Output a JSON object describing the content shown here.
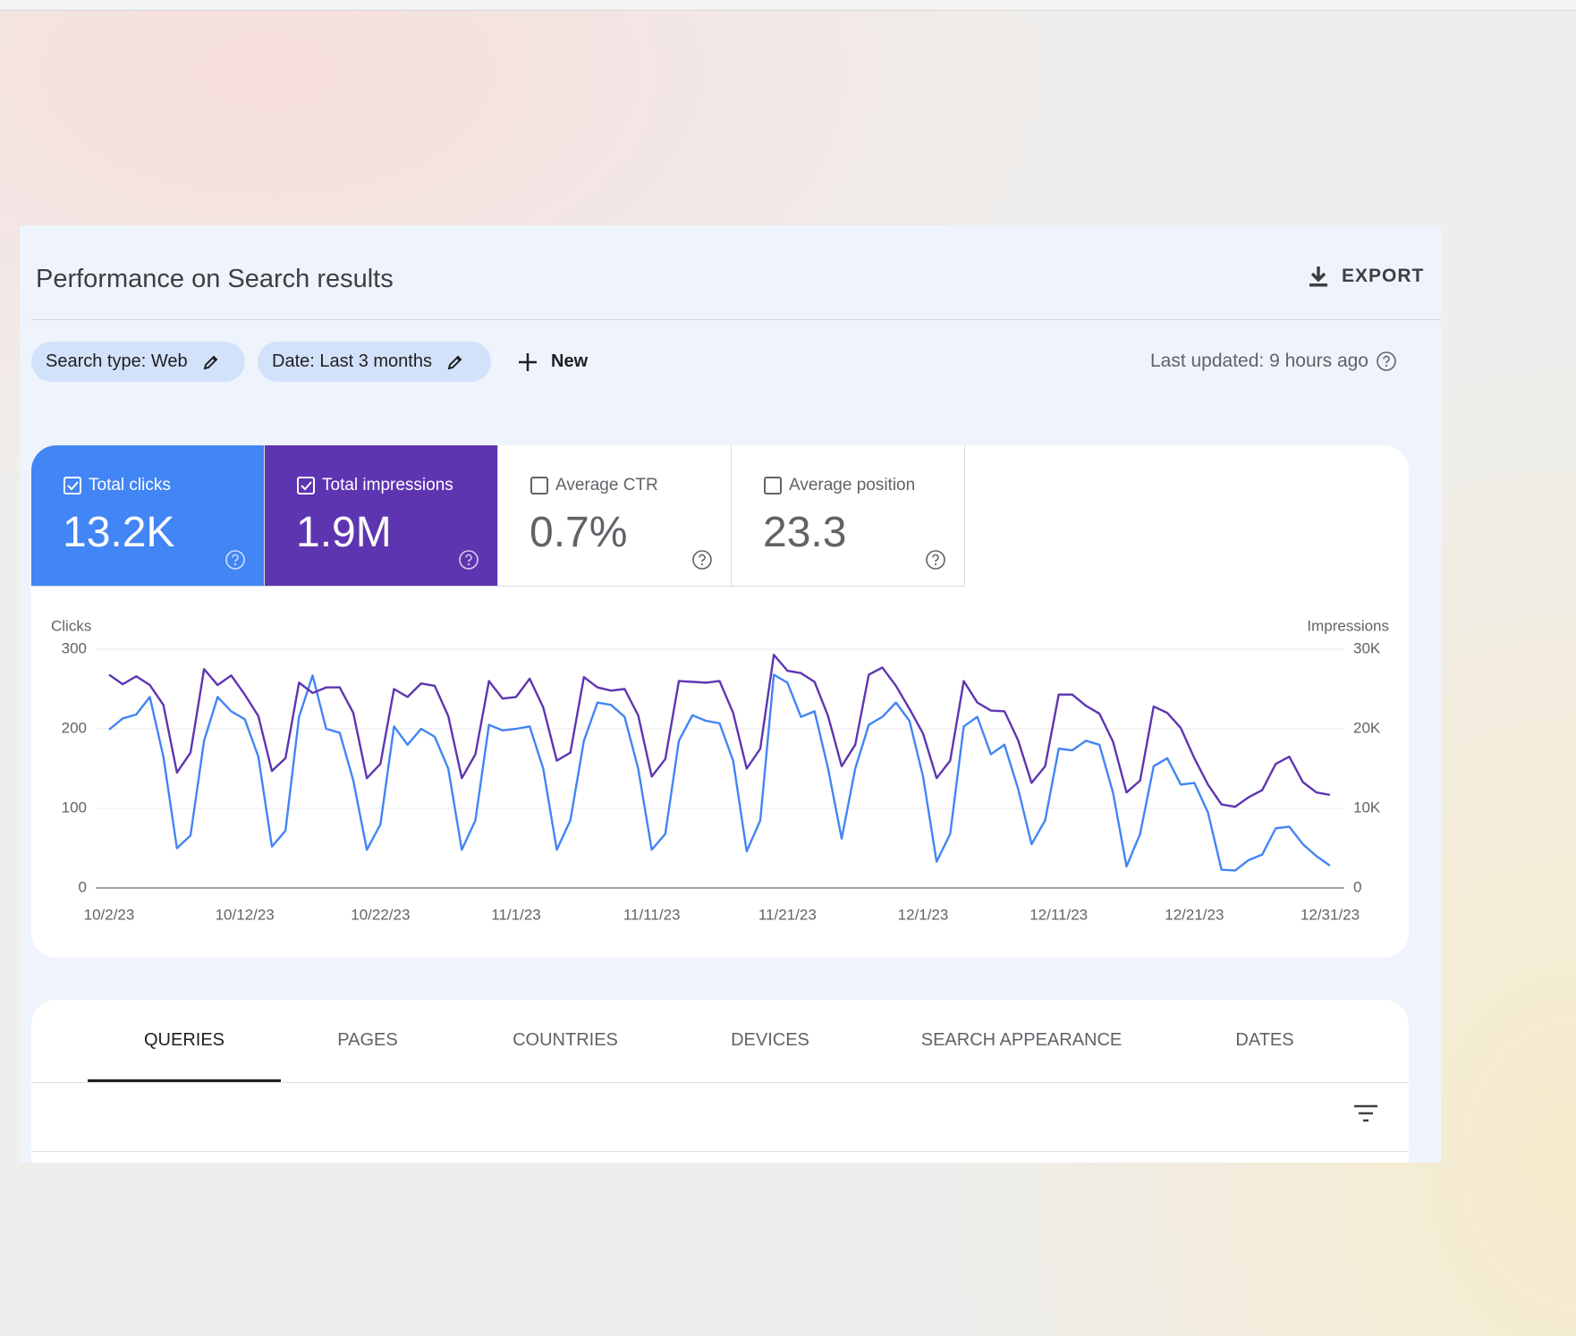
{
  "header": {
    "title": "Performance on Search results",
    "export": "EXPORT"
  },
  "filters": [
    "Search type: Web",
    "Date: Last 3 months"
  ],
  "new_button": "New",
  "last_updated": "Last updated: 9 hours ago",
  "metrics": [
    {
      "label": "Total clicks",
      "value": "13.2K",
      "selected": true,
      "color": "#4285f4"
    },
    {
      "label": "Total impressions",
      "value": "1.9M",
      "selected": true,
      "color": "#5e35b1"
    },
    {
      "label": "Average CTR",
      "value": "0.7%",
      "selected": false,
      "color": "#ffffff"
    },
    {
      "label": "Average position",
      "value": "23.3",
      "selected": false,
      "color": "#ffffff"
    }
  ],
  "chart_data": {
    "type": "line",
    "ylabel": "Clicks",
    "y2label": "Impressions",
    "x": [
      "10/2/23",
      "10/3/23",
      "10/4/23",
      "10/5/23",
      "10/6/23",
      "10/7/23",
      "10/8/23",
      "10/9/23",
      "10/10/23",
      "10/11/23",
      "10/12/23",
      "10/13/23",
      "10/14/23",
      "10/15/23",
      "10/16/23",
      "10/17/23",
      "10/18/23",
      "10/19/23",
      "10/20/23",
      "10/21/23",
      "10/22/23",
      "10/23/23",
      "10/24/23",
      "10/25/23",
      "10/26/23",
      "10/27/23",
      "10/28/23",
      "10/29/23",
      "10/30/23",
      "10/31/23",
      "11/1/23",
      "11/2/23",
      "11/3/23",
      "11/4/23",
      "11/5/23",
      "11/6/23",
      "11/7/23",
      "11/8/23",
      "11/9/23",
      "11/10/23",
      "11/11/23",
      "11/12/23",
      "11/13/23",
      "11/14/23",
      "11/15/23",
      "11/16/23",
      "11/17/23",
      "11/18/23",
      "11/19/23",
      "11/20/23",
      "11/21/23",
      "11/22/23",
      "11/23/23",
      "11/24/23",
      "11/25/23",
      "11/26/23",
      "11/27/23",
      "11/28/23",
      "11/29/23",
      "11/30/23",
      "12/1/23",
      "12/2/23",
      "12/3/23",
      "12/4/23",
      "12/5/23",
      "12/6/23",
      "12/7/23",
      "12/8/23",
      "12/9/23",
      "12/10/23",
      "12/11/23",
      "12/12/23",
      "12/13/23",
      "12/14/23",
      "12/15/23",
      "12/16/23",
      "12/17/23",
      "12/18/23",
      "12/19/23",
      "12/20/23",
      "12/21/23",
      "12/22/23",
      "12/23/23",
      "12/24/23",
      "12/25/23",
      "12/26/23",
      "12/27/23",
      "12/28/23",
      "12/29/23",
      "12/30/23",
      "12/31/23"
    ],
    "xticks": [
      "10/2/23",
      "10/12/23",
      "10/22/23",
      "11/1/23",
      "11/11/23",
      "11/21/23",
      "12/1/23",
      "12/11/23",
      "12/21/23",
      "12/31/23"
    ],
    "ylim": [
      0,
      300
    ],
    "yticks": [
      0,
      100,
      200,
      300
    ],
    "y2lim": [
      0,
      30000
    ],
    "y2ticks": [
      0,
      {
        "value": 10000,
        "label": "10K"
      },
      {
        "value": 20000,
        "label": "20K"
      },
      {
        "value": 30000,
        "label": "30K"
      }
    ],
    "grid": true,
    "series": [
      {
        "color": "#4285f4",
        "axis": "y",
        "values": [
          199,
          213,
          218,
          240,
          165,
          50,
          66,
          185,
          240,
          222,
          212,
          165,
          52,
          72,
          215,
          267,
          200,
          195,
          135,
          48,
          80,
          203,
          180,
          200,
          190,
          150,
          48,
          85,
          205,
          198,
          200,
          203,
          150,
          48,
          85,
          185,
          233,
          230,
          215,
          150,
          48,
          68,
          185,
          217,
          210,
          207,
          160,
          46,
          85,
          268,
          258,
          215,
          222,
          150,
          62,
          150,
          205,
          215,
          233,
          210,
          140,
          33,
          68,
          203,
          215,
          168,
          180,
          125,
          55,
          85,
          175,
          173,
          185,
          180,
          120,
          27,
          68,
          153,
          163,
          130,
          132,
          95,
          23,
          22,
          35,
          42,
          75,
          77,
          55,
          40,
          28
        ]
      },
      {
        "color": "#5e35b1",
        "axis": "y2",
        "values": [
          26800,
          25600,
          26600,
          25500,
          23000,
          14500,
          17000,
          27500,
          25500,
          26700,
          24300,
          21600,
          14700,
          16300,
          25800,
          24500,
          25200,
          25200,
          22000,
          13800,
          15600,
          25000,
          24000,
          25700,
          25400,
          21600,
          13800,
          16800,
          26000,
          23800,
          24000,
          26300,
          22700,
          16000,
          17000,
          26500,
          25200,
          24800,
          25000,
          21700,
          14000,
          16200,
          26000,
          25900,
          25800,
          26000,
          22000,
          15000,
          17500,
          29300,
          27300,
          27000,
          25900,
          21600,
          15300,
          18000,
          26800,
          27700,
          25400,
          22500,
          19400,
          13800,
          16000,
          26000,
          23300,
          22300,
          22200,
          18600,
          13200,
          15300,
          24300,
          24300,
          22900,
          21900,
          18400,
          12000,
          13500,
          22800,
          22000,
          20100,
          16300,
          13000,
          10500,
          10200,
          11400,
          12300,
          15600,
          16500,
          13300,
          12000,
          11700
        ]
      }
    ]
  },
  "tabs": [
    "QUERIES",
    "PAGES",
    "COUNTRIES",
    "DEVICES",
    "SEARCH APPEARANCE",
    "DATES"
  ],
  "active_tab": 0
}
